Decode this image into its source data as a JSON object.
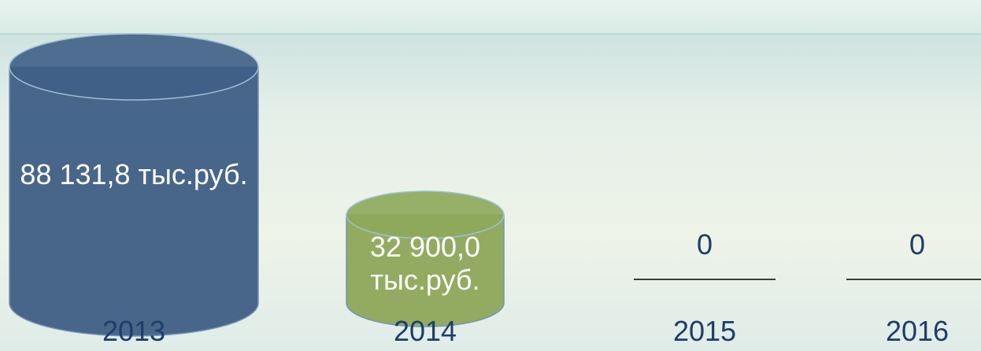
{
  "chart_data": {
    "type": "cylinder-bar",
    "categories": [
      "2013",
      "2014",
      "2015",
      "2016"
    ],
    "values": [
      88131.8,
      32900.0,
      0,
      0
    ],
    "value_labels": [
      "88 131,8 тыс.руб.",
      "32 900,0 тыс.руб.",
      "0",
      "0"
    ],
    "colors": [
      "#3f5f86",
      "#8ea85a",
      "#000000",
      "#000000"
    ]
  }
}
